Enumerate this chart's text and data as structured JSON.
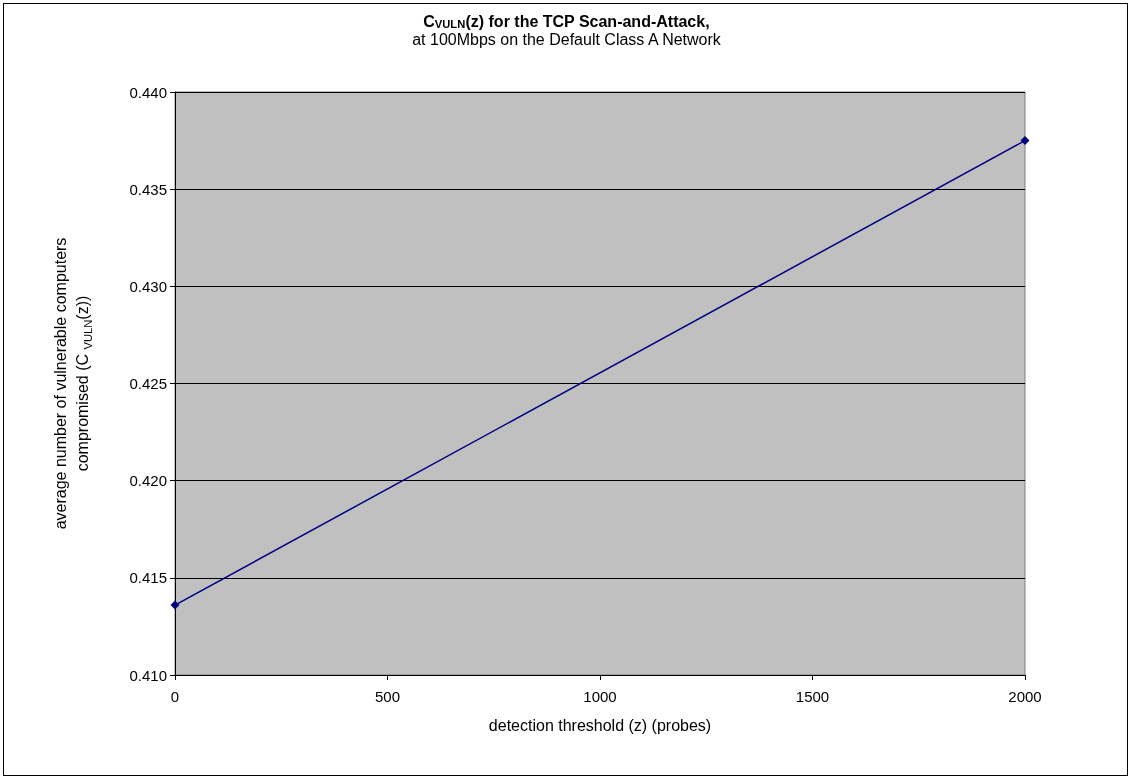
{
  "chart_data": {
    "type": "line",
    "title": "C$_{VULN}$(z) for the TCP Scan-and-Attack,",
    "subtitle": "at 100Mbps on the Default Class A Network",
    "xlabel": "detection threshold (z) (probes)",
    "ylabel": "average number of vulnerable computers compromised (C $_{VULN}$(z))",
    "x": [
      0,
      2000
    ],
    "series": [
      {
        "color": "#000080",
        "values": [
          0.4136,
          0.4375
        ]
      }
    ],
    "xlim": [
      0,
      2000
    ],
    "xticks": [
      0,
      500,
      1000,
      1500,
      2000
    ],
    "ylim": [
      0.41,
      0.44
    ],
    "yticks": [
      {
        "value": 0.41,
        "label": "0.410"
      },
      0.415,
      {
        "value": 0.42,
        "label": "0.420"
      },
      0.425,
      {
        "value": 0.43,
        "label": "0.430"
      },
      0.435,
      {
        "value": 0.44,
        "label": "0.440"
      }
    ],
    "grid": "y",
    "marker": "diamond",
    "line_style": "solid"
  }
}
